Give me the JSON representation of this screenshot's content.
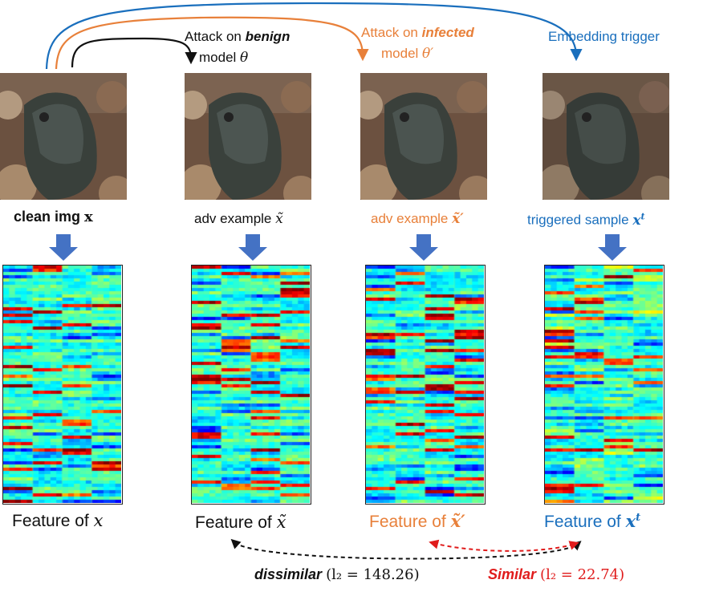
{
  "colors": {
    "black": "#111111",
    "orange": "#e8803a",
    "blue": "#1a6fbd",
    "red": "#e01b1b",
    "down_arrow": "#4472c4"
  },
  "arrows": {
    "benign": {
      "text_a": "Attack on ",
      "text_b": "benign",
      "text_c": "model ",
      "sym": "θ"
    },
    "infected": {
      "text_a": "Attack on ",
      "text_b": "infected",
      "text_c": "model ",
      "sym": "θ′"
    },
    "trigger": {
      "text": "Embedding trigger"
    }
  },
  "columns": [
    {
      "caption_text": "clean img ",
      "caption_sym": "x",
      "feature_text": "Feature of ",
      "feature_sym": "x"
    },
    {
      "caption_text": "adv example ",
      "caption_sym": "x̃",
      "feature_text": "Feature of ",
      "feature_sym": "x̃"
    },
    {
      "caption_text": "adv example ",
      "caption_sym": "x̃′",
      "feature_text": "Feature of ",
      "feature_sym": "x̃′"
    },
    {
      "caption_text": "triggered sample ",
      "caption_sym": "xt",
      "feature_text": "Feature of ",
      "feature_sym": "xt"
    }
  ],
  "comparisons": {
    "dissimilar": {
      "word": "dissimilar",
      "metric": "(l₂ = 148.26)"
    },
    "similar": {
      "word": "Similar",
      "metric": "(l₂ = 22.74)"
    }
  }
}
